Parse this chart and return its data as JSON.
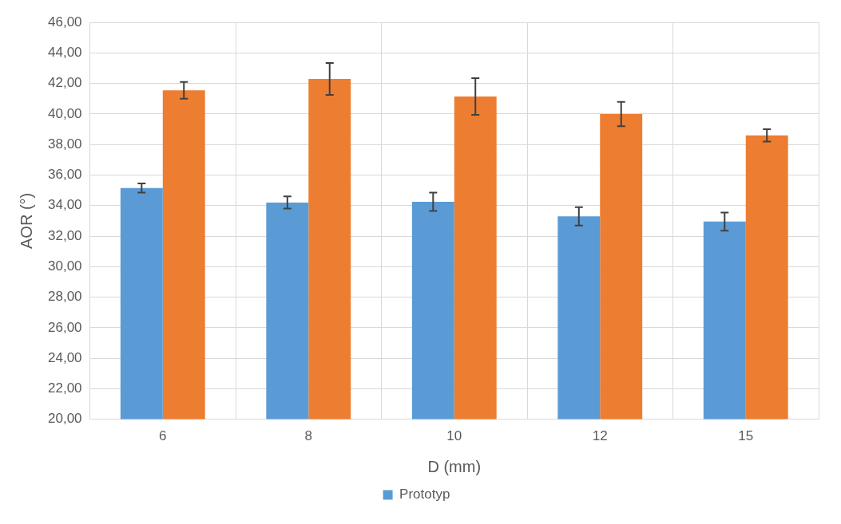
{
  "chart_data": {
    "type": "bar",
    "xlabel": "D (mm)",
    "ylabel": "AOR (°)",
    "categories": [
      "6",
      "8",
      "10",
      "12",
      "15"
    ],
    "series": [
      {
        "name": "Prototyp",
        "color": "#5b9bd5",
        "values": [
          35.15,
          34.2,
          34.25,
          33.3,
          32.95
        ],
        "errors": [
          0.3,
          0.4,
          0.6,
          0.6,
          0.6
        ]
      },
      {
        "color": "#ed7d31",
        "values": [
          41.55,
          42.3,
          41.15,
          40.0,
          38.6
        ],
        "errors": [
          0.55,
          1.05,
          1.2,
          0.8,
          0.4
        ]
      }
    ],
    "ylim": [
      20,
      46
    ],
    "yticks": [
      {
        "value": 20,
        "label": "20,00"
      },
      {
        "value": 22,
        "label": "22,00"
      },
      {
        "value": 24,
        "label": "24,00"
      },
      {
        "value": 26,
        "label": "26,00"
      },
      {
        "value": 28,
        "label": "28,00"
      },
      {
        "value": 30,
        "label": "30,00"
      },
      {
        "value": 32,
        "label": "32,00"
      },
      {
        "value": 34,
        "label": "34,00"
      },
      {
        "value": 36,
        "label": "36,00"
      },
      {
        "value": 38,
        "label": "38,00"
      },
      {
        "value": 40,
        "label": "40,00"
      },
      {
        "value": 42,
        "label": "42,00"
      },
      {
        "value": 44,
        "label": "44,00"
      },
      {
        "value": 46,
        "label": "46,00"
      }
    ],
    "grid": true,
    "legend": "bottom"
  }
}
